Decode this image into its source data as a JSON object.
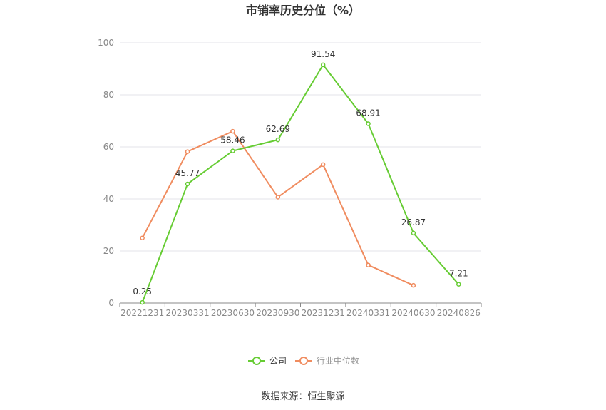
{
  "chart_data": {
    "type": "line",
    "title": "市销率历史分位（%）",
    "categories": [
      "20221231",
      "20230331",
      "20230630",
      "20230930",
      "20231231",
      "20240331",
      "20240630",
      "20240826"
    ],
    "ylim": [
      0,
      100
    ],
    "yticks": [
      0,
      20,
      40,
      60,
      80,
      100
    ],
    "grid": true,
    "legend_position": "bottom",
    "series": [
      {
        "name": "公司",
        "color": "#66cc33",
        "values": [
          0.25,
          45.77,
          58.46,
          62.69,
          91.54,
          68.91,
          26.87,
          7.21
        ],
        "labels": [
          "0.25",
          "45.77",
          "58.46",
          "62.69",
          "91.54",
          "68.91",
          "26.87",
          "7.21"
        ]
      },
      {
        "name": "行业中位数",
        "color": "#f08c5f",
        "values": [
          25.0,
          58.2,
          66.0,
          40.7,
          53.2,
          14.6,
          6.8,
          null
        ]
      }
    ]
  },
  "source": "数据来源：恒生聚源"
}
